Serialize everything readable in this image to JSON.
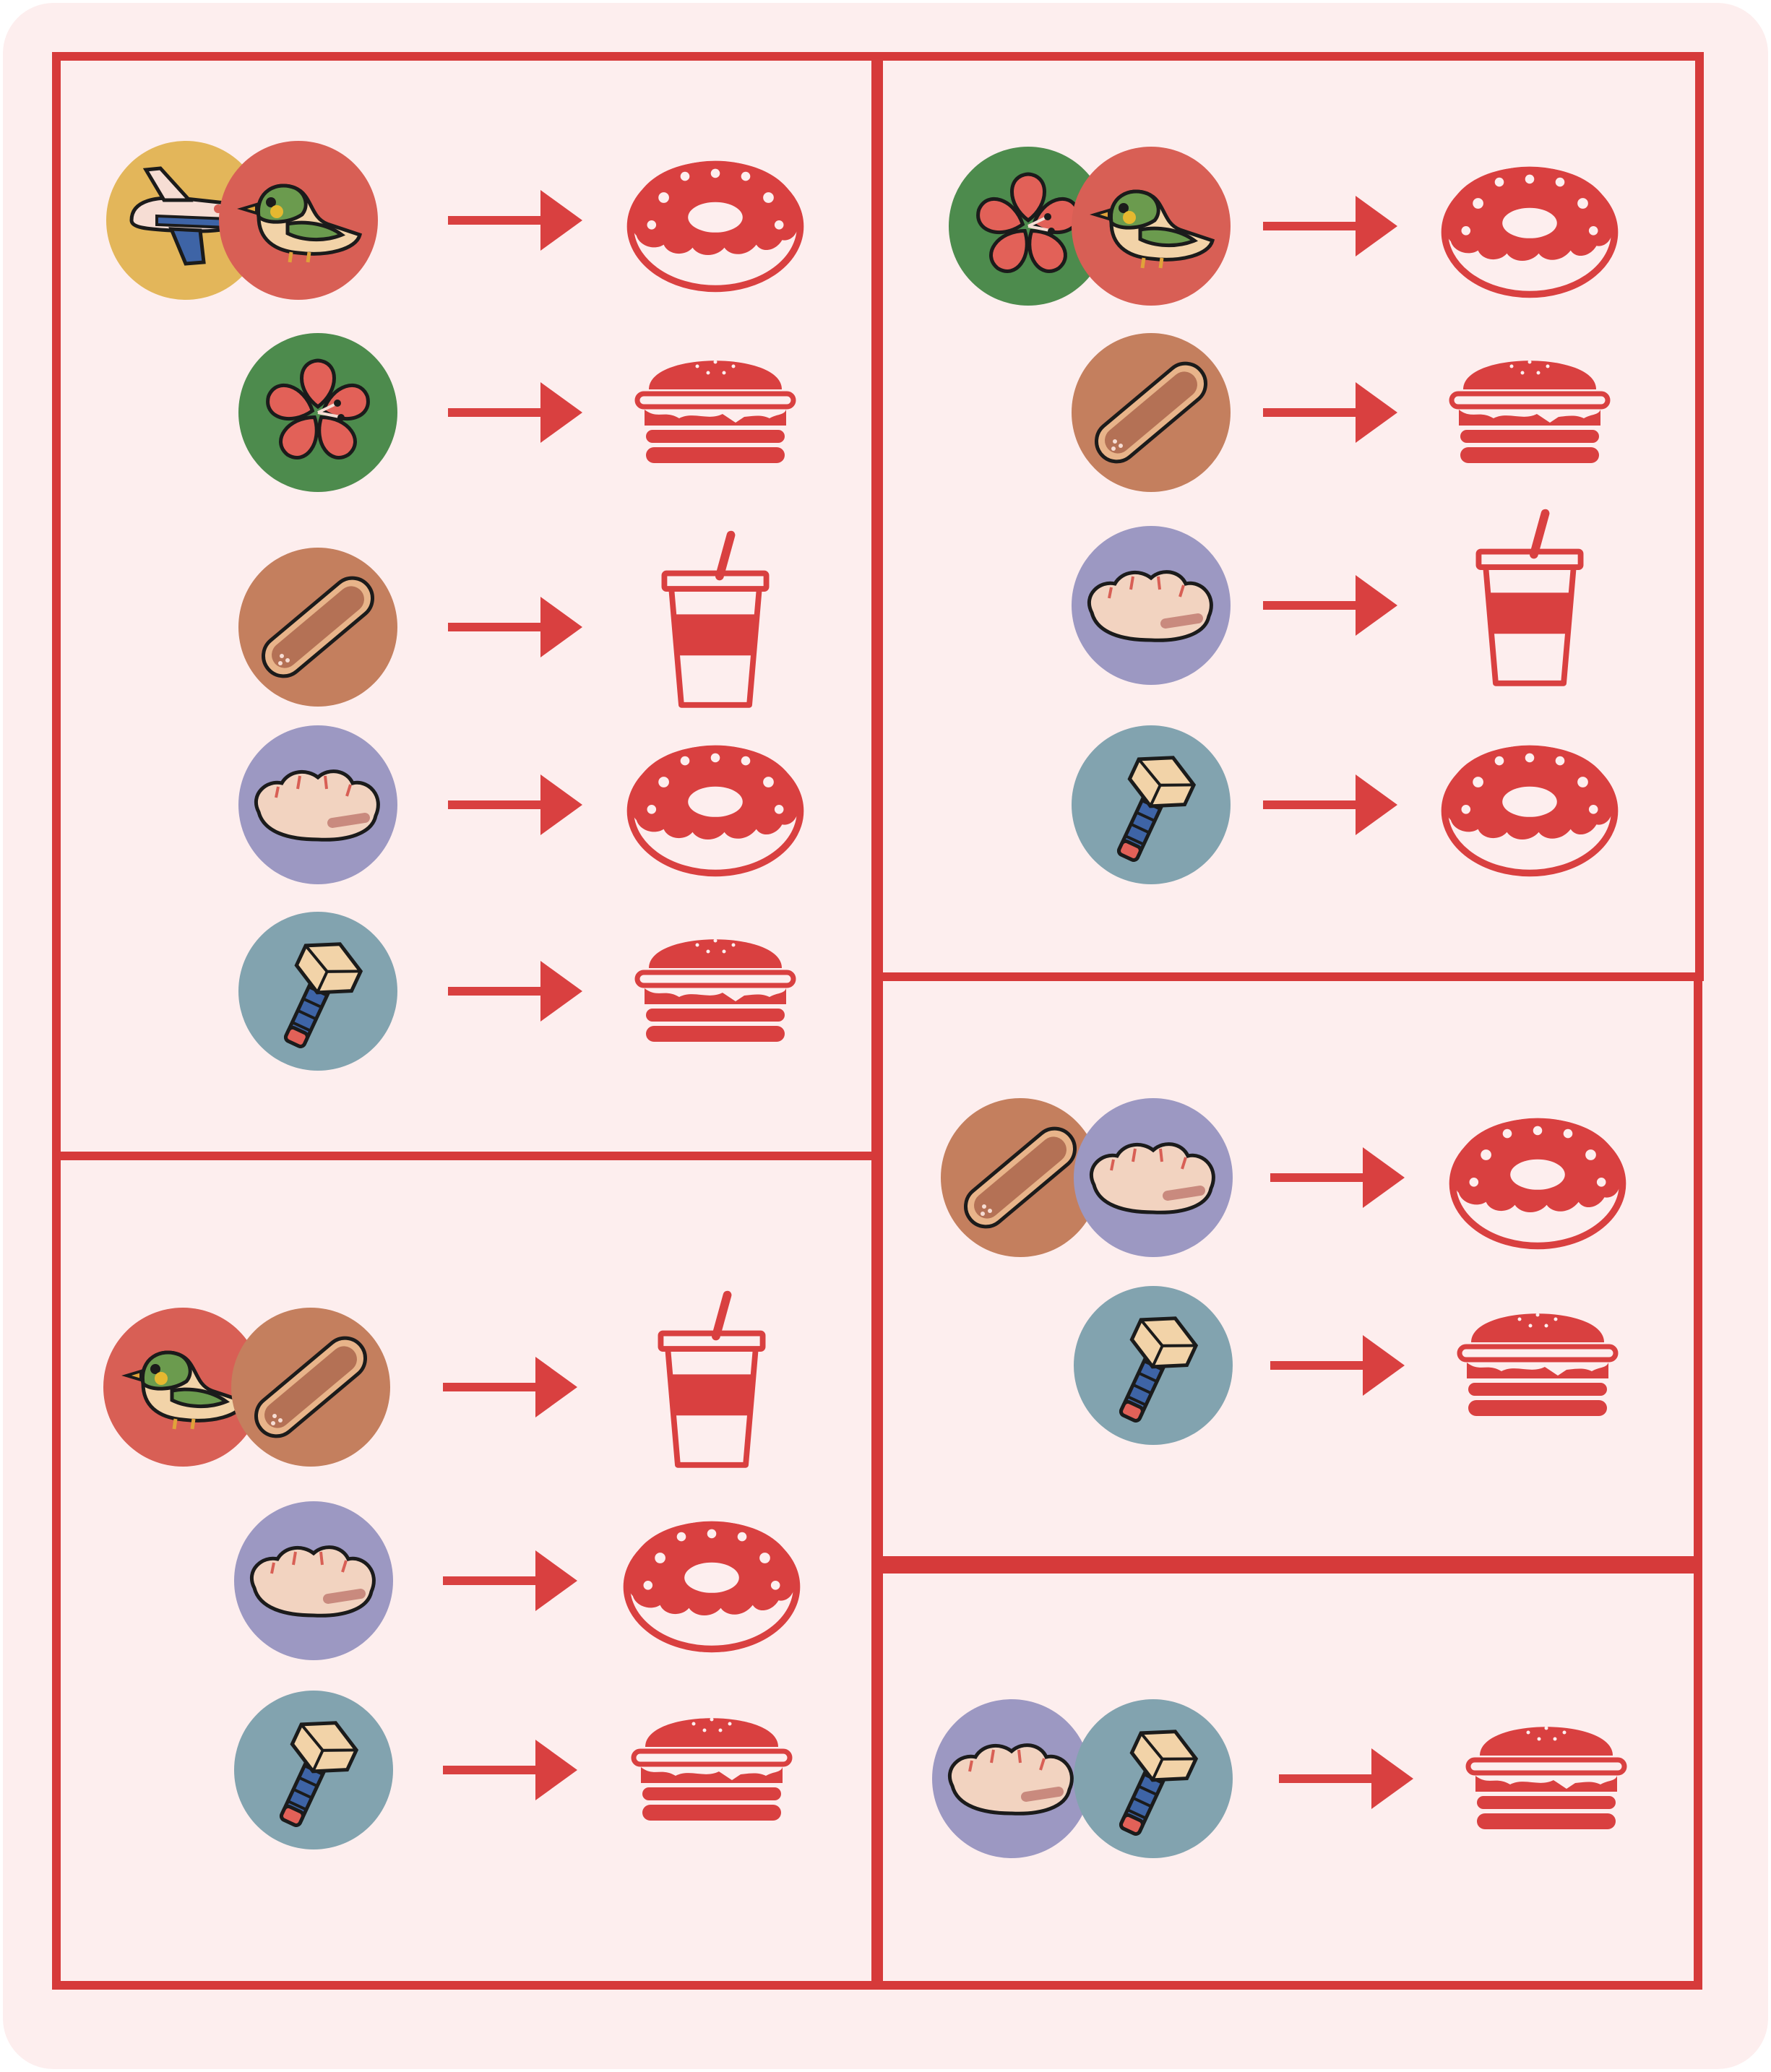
{
  "card": {
    "background": "#fdeeee",
    "accent": "#d94040",
    "frame": "#d63a3a"
  },
  "token_colors": {
    "plane": "#e3b65a",
    "bird": "#d85f55",
    "flower": "#4d8b4d",
    "bread": "#c47f5e",
    "dumpling": "#9c98c2",
    "bolt": "#82a3af"
  },
  "panels": [
    {
      "id": "top-left",
      "rules": [
        {
          "inputs": [
            "plane",
            "bird"
          ],
          "output": "donut"
        },
        {
          "inputs": [
            "flower"
          ],
          "output": "burger"
        },
        {
          "inputs": [
            "bread"
          ],
          "output": "drink"
        },
        {
          "inputs": [
            "dumpling"
          ],
          "output": "donut"
        },
        {
          "inputs": [
            "bolt"
          ],
          "output": "burger"
        }
      ]
    },
    {
      "id": "top-right",
      "rules": [
        {
          "inputs": [
            "flower",
            "bird"
          ],
          "output": "donut"
        },
        {
          "inputs": [
            "bread"
          ],
          "output": "burger"
        },
        {
          "inputs": [
            "dumpling"
          ],
          "output": "drink"
        },
        {
          "inputs": [
            "bolt"
          ],
          "output": "donut"
        }
      ]
    },
    {
      "id": "middle-right",
      "rules": [
        {
          "inputs": [
            "bread",
            "dumpling"
          ],
          "output": "donut"
        },
        {
          "inputs": [
            "bolt"
          ],
          "output": "burger"
        }
      ]
    },
    {
      "id": "bottom-left",
      "rules": [
        {
          "inputs": [
            "bird",
            "bread"
          ],
          "output": "drink"
        },
        {
          "inputs": [
            "dumpling"
          ],
          "output": "donut"
        },
        {
          "inputs": [
            "bolt"
          ],
          "output": "burger"
        }
      ]
    },
    {
      "id": "bottom-right",
      "rules": [
        {
          "inputs": [
            "dumpling",
            "bolt"
          ],
          "output": "burger"
        }
      ]
    }
  ]
}
